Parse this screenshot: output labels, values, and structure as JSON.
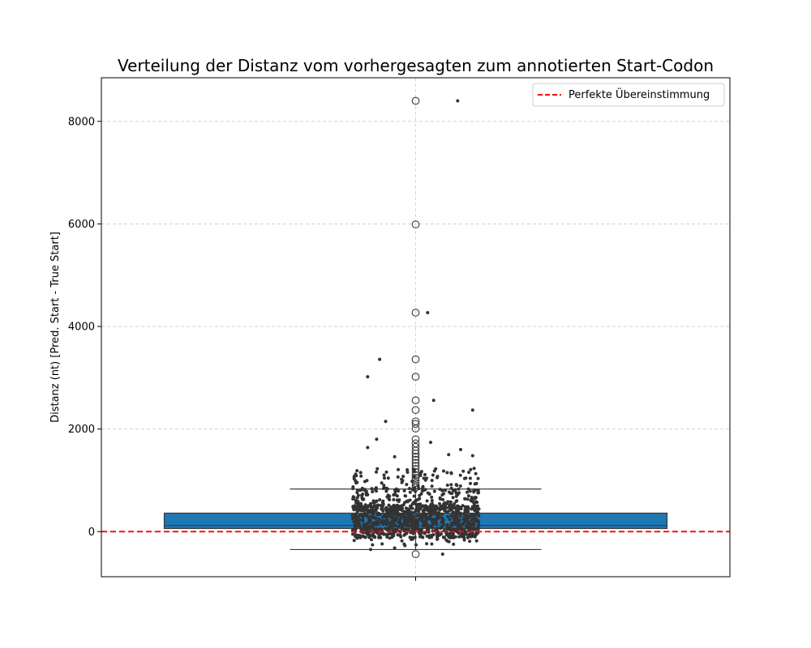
{
  "chart_data": {
    "type": "box",
    "title": "Verteilung der Distanz vom vorhergesagten zum annotierten Start-Codon",
    "xlabel": "",
    "ylabel": "Distanz (nt) [Pred. Start - True Start]",
    "ylim": [
      -880,
      8850
    ],
    "yticks": [
      0,
      2000,
      4000,
      6000,
      8000
    ],
    "grid": true,
    "legend": {
      "position": "top-right",
      "entries": [
        "Perfekte Übereinstimmung"
      ]
    },
    "reference_line": {
      "y": 0,
      "label": "Perfekte Übereinstimmung",
      "color": "#ff0000",
      "style": "dashed"
    },
    "box": {
      "q1": 60,
      "median": 120,
      "q3": 360,
      "whisker_low": -350,
      "whisker_high": 830,
      "color": "#1f77b4",
      "outliers": [
        8400,
        5990,
        4270,
        3360,
        3020,
        2560,
        2370,
        2150,
        2100,
        2010,
        1800,
        1720,
        1650,
        1580,
        1520,
        1460,
        1400,
        1340,
        1280,
        1220,
        1160,
        1100,
        1050,
        1000,
        950,
        900,
        860,
        -440
      ]
    },
    "strip": {
      "color": "#333333",
      "n_points": 1150,
      "extreme_points": [
        {
          "dx": 0.14,
          "y": 8400
        },
        {
          "dx": 0.04,
          "y": 4270
        },
        {
          "dx": -0.12,
          "y": 3360
        },
        {
          "dx": -0.16,
          "y": 3020
        },
        {
          "dx": 0.06,
          "y": 2560
        },
        {
          "dx": 0.19,
          "y": 2370
        },
        {
          "dx": -0.1,
          "y": 2150
        },
        {
          "dx": -0.13,
          "y": 1800
        },
        {
          "dx": 0.05,
          "y": 1740
        },
        {
          "dx": -0.16,
          "y": 1640
        },
        {
          "dx": 0.15,
          "y": 1600
        },
        {
          "dx": 0.11,
          "y": 1500
        },
        {
          "dx": -0.07,
          "y": 1460
        },
        {
          "dx": 0.19,
          "y": 1480
        },
        {
          "dx": -0.2,
          "y": 1120
        },
        {
          "dx": 0.09,
          "y": -440
        },
        {
          "dx": -0.15,
          "y": -350
        },
        {
          "dx": -0.07,
          "y": -320
        }
      ]
    }
  }
}
